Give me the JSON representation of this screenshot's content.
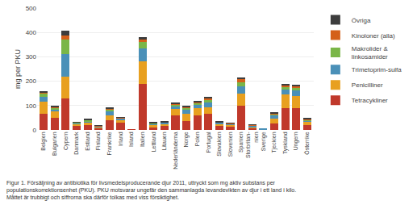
{
  "chart_data": {
    "type": "bar",
    "stacked": true,
    "categories": [
      "Belgien",
      "Bulgarien",
      "Cypern",
      "Danmark",
      "Estland",
      "Finland",
      "Frankrike",
      "Irland",
      "Island",
      "Italien",
      "Lettland",
      "Litauen",
      "Nederländerna",
      "Norge",
      "Polen",
      "Portugal",
      "Slovakien",
      "Slovenien",
      "Spanien",
      "Storbritan-\nnien",
      "Sverige",
      "Tjeckien",
      "Tyskland",
      "Ungern",
      "Österrike"
    ],
    "series": [
      {
        "name": "Tetracykliner",
        "color": "#c0392b",
        "values": [
          65,
          50,
          130,
          15,
          20,
          8,
          40,
          30,
          1,
          190,
          10,
          15,
          60,
          35,
          60,
          65,
          18,
          15,
          100,
          8,
          2,
          28,
          90,
          90,
          20
        ]
      },
      {
        "name": "Penicilliner",
        "color": "#e8a020",
        "values": [
          50,
          25,
          90,
          10,
          10,
          5,
          20,
          12,
          0,
          90,
          12,
          10,
          25,
          30,
          28,
          28,
          8,
          5,
          50,
          5,
          1,
          20,
          55,
          50,
          12
        ]
      },
      {
        "name": "Trimetoprim-sulfa",
        "color": "#4a90b8",
        "values": [
          22,
          10,
          90,
          4,
          6,
          2,
          15,
          5,
          0,
          55,
          4,
          5,
          12,
          18,
          14,
          18,
          4,
          4,
          28,
          4,
          1,
          12,
          20,
          22,
          7
        ]
      },
      {
        "name": "Makrolider &\nlinkosamider",
        "color": "#7ab648",
        "values": [
          12,
          5,
          60,
          2,
          4,
          1,
          8,
          2,
          0,
          25,
          2,
          2,
          8,
          8,
          8,
          12,
          2,
          2,
          18,
          2,
          0,
          4,
          12,
          12,
          4
        ]
      },
      {
        "name": "Kinoloner (alla)",
        "color": "#d4601a",
        "values": [
          6,
          4,
          18,
          1,
          2,
          1,
          4,
          1,
          0,
          12,
          1,
          1,
          4,
          4,
          4,
          8,
          1,
          1,
          12,
          1,
          0,
          3,
          6,
          6,
          2
        ]
      },
      {
        "name": "Övriga",
        "color": "#3d3d3d",
        "values": [
          4,
          4,
          18,
          1,
          2,
          1,
          4,
          1,
          0,
          8,
          1,
          1,
          4,
          4,
          4,
          6,
          1,
          1,
          8,
          1,
          0,
          3,
          6,
          6,
          2
        ]
      }
    ],
    "ylabel": "mg per PKU",
    "ylim": [
      0,
      500
    ],
    "yticks": [
      0,
      100,
      200,
      300,
      400,
      500
    ],
    "grid": true,
    "legend": "right",
    "caption": "Figur 1. Försäljning av antibiotika för livsmedelsproducerande djur 2011, uttryckt som mg aktiv substans per\npopulationskorrektionsenhet (PKU). PKU motsvarar ungefär den sammanlagda levandevikten av djur i ett land i kilo.\nMåttet är trubbigt och siffrorna ska därför tolkas med viss försiktighet."
  }
}
